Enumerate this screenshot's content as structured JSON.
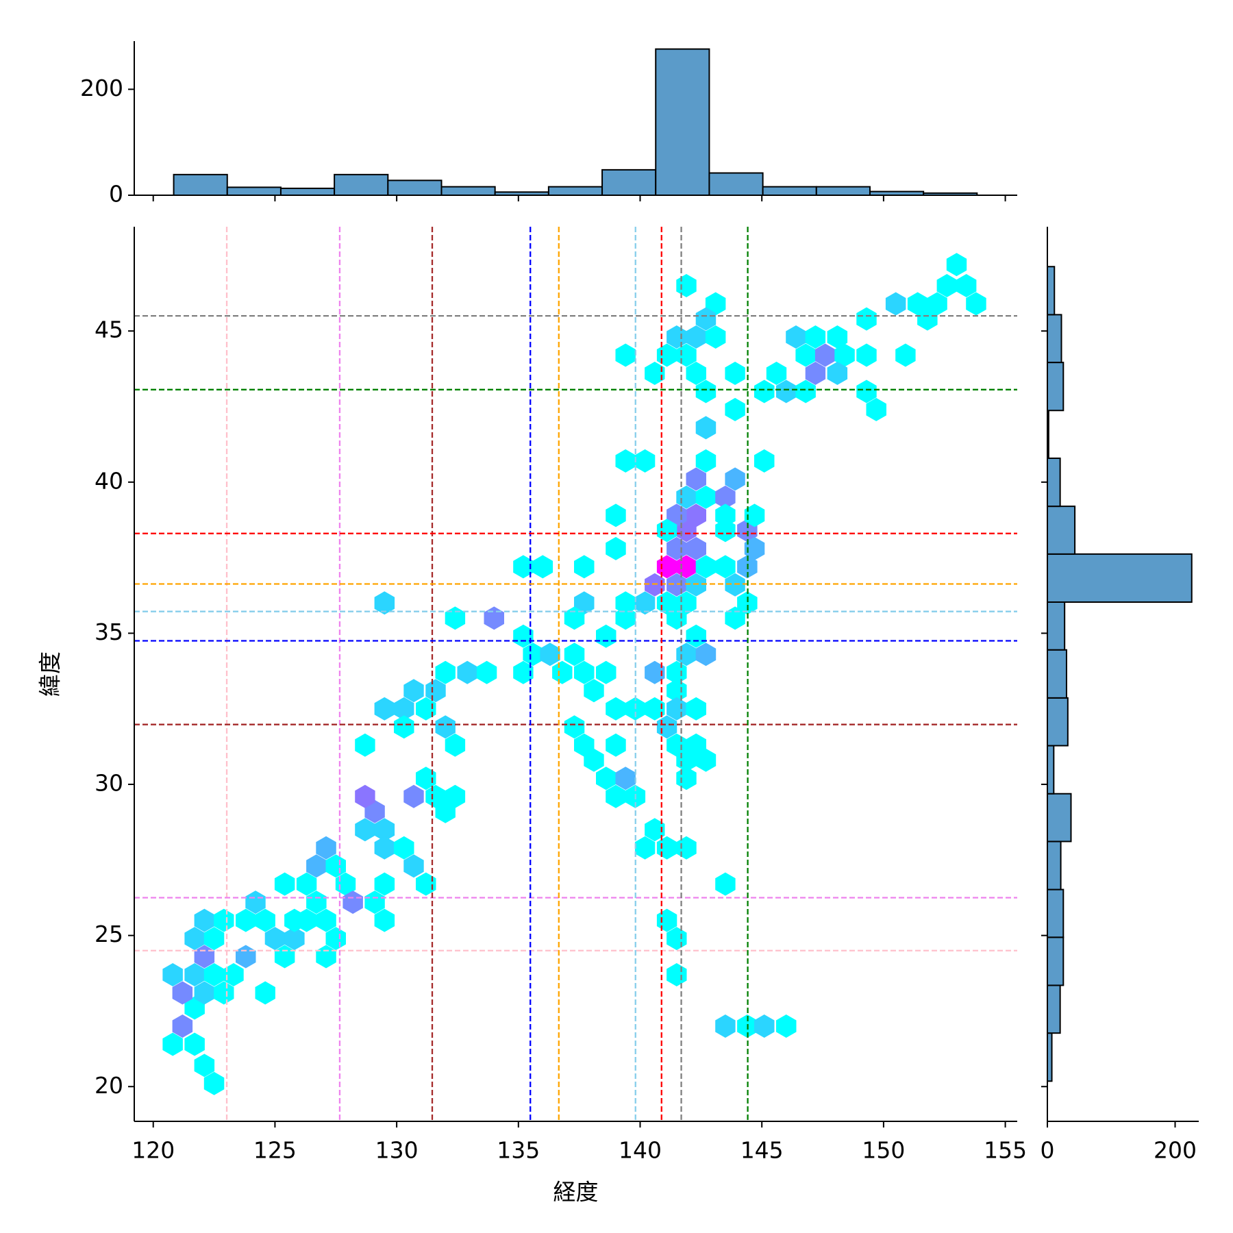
{
  "chart_data": [
    {
      "type": "histogram",
      "orientation": "vertical",
      "color": "#5b9bc9",
      "bins": [
        120.84,
        123.04,
        125.24,
        127.44,
        129.64,
        131.84,
        134.04,
        136.24,
        138.44,
        140.64,
        142.84,
        145.04,
        147.24,
        149.44,
        151.64,
        153.84
      ],
      "counts": [
        39,
        15,
        13,
        39,
        28,
        16,
        6,
        16,
        48,
        276,
        42,
        16,
        16,
        7,
        4
      ],
      "ylim": [
        0,
        291
      ],
      "yticks": [
        0,
        200
      ]
    },
    {
      "type": "hexbin",
      "x_label": "経度",
      "y_label": "緯度",
      "colormap": "cool",
      "xlim": [
        119.22,
        155.49
      ],
      "ylim": [
        18.85,
        48.45
      ],
      "xticks": [
        120,
        125,
        130,
        135,
        140,
        145,
        150,
        155
      ],
      "yticks": [
        20,
        25,
        30,
        35,
        40,
        45
      ],
      "points": [
        [
          122.5,
          20.1,
          1
        ],
        [
          122.1,
          20.7,
          1
        ],
        [
          120.8,
          21.4,
          1
        ],
        [
          121.7,
          21.4,
          1
        ],
        [
          121.2,
          22.0,
          12
        ],
        [
          121.7,
          22.6,
          1
        ],
        [
          121.2,
          23.1,
          12
        ],
        [
          122.1,
          23.1,
          5
        ],
        [
          120.8,
          23.7,
          5
        ],
        [
          121.7,
          23.7,
          5
        ],
        [
          122.5,
          23.7,
          1
        ],
        [
          123.3,
          23.7,
          1
        ],
        [
          122.9,
          23.1,
          1
        ],
        [
          122.1,
          24.3,
          12
        ],
        [
          121.7,
          24.9,
          5
        ],
        [
          122.1,
          25.5,
          5
        ],
        [
          122.9,
          25.5,
          1
        ],
        [
          122.5,
          24.9,
          1
        ],
        [
          123.8,
          25.5,
          1
        ],
        [
          124.2,
          26.1,
          5
        ],
        [
          124.6,
          25.5,
          1
        ],
        [
          125.0,
          24.9,
          5
        ],
        [
          125.8,
          24.9,
          5
        ],
        [
          125.4,
          24.3,
          1
        ],
        [
          123.8,
          24.3,
          8
        ],
        [
          124.6,
          23.1,
          1
        ],
        [
          125.8,
          25.5,
          1
        ],
        [
          125.4,
          26.7,
          1
        ],
        [
          126.3,
          26.7,
          1
        ],
        [
          126.3,
          25.5,
          1
        ],
        [
          126.7,
          26.1,
          1
        ],
        [
          127.1,
          25.5,
          1
        ],
        [
          127.1,
          24.3,
          1
        ],
        [
          127.5,
          24.9,
          1
        ],
        [
          126.7,
          27.3,
          8
        ],
        [
          127.1,
          27.9,
          8
        ],
        [
          127.5,
          27.3,
          1
        ],
        [
          127.9,
          26.7,
          1
        ],
        [
          128.2,
          26.1,
          12
        ],
        [
          129.1,
          26.1,
          1
        ],
        [
          129.5,
          25.5,
          1
        ],
        [
          129.5,
          26.7,
          1
        ],
        [
          128.7,
          28.5,
          5
        ],
        [
          129.1,
          29.1,
          12
        ],
        [
          128.7,
          29.6,
          14
        ],
        [
          129.5,
          28.5,
          5
        ],
        [
          129.5,
          27.9,
          5
        ],
        [
          130.3,
          27.9,
          1
        ],
        [
          130.7,
          27.3,
          5
        ],
        [
          131.2,
          26.7,
          1
        ],
        [
          131.2,
          30.2,
          1
        ],
        [
          130.7,
          29.6,
          12
        ],
        [
          131.6,
          29.6,
          1
        ],
        [
          132.0,
          29.1,
          1
        ],
        [
          132.4,
          29.6,
          1
        ],
        [
          128.7,
          31.3,
          1
        ],
        [
          129.5,
          32.5,
          5
        ],
        [
          130.3,
          32.5,
          5
        ],
        [
          130.7,
          33.1,
          5
        ],
        [
          130.3,
          31.9,
          1
        ],
        [
          131.2,
          32.5,
          1
        ],
        [
          131.6,
          33.1,
          5
        ],
        [
          132.0,
          31.9,
          5
        ],
        [
          132.4,
          31.3,
          1
        ],
        [
          132.0,
          33.7,
          1
        ],
        [
          132.9,
          33.7,
          5
        ],
        [
          133.7,
          33.7,
          1
        ],
        [
          132.4,
          35.5,
          1
        ],
        [
          134.0,
          35.5,
          12
        ],
        [
          129.5,
          36.0,
          5
        ],
        [
          135.2,
          34.9,
          1
        ],
        [
          135.2,
          33.7,
          1
        ],
        [
          135.6,
          34.3,
          1
        ],
        [
          136.3,
          34.3,
          5
        ],
        [
          136.0,
          37.2,
          1
        ],
        [
          135.2,
          37.2,
          1
        ],
        [
          137.7,
          37.2,
          1
        ],
        [
          137.7,
          36.0,
          5
        ],
        [
          137.3,
          35.5,
          1
        ],
        [
          137.3,
          34.3,
          1
        ],
        [
          136.8,
          33.7,
          1
        ],
        [
          137.7,
          33.7,
          1
        ],
        [
          138.6,
          33.7,
          1
        ],
        [
          138.1,
          33.1,
          1
        ],
        [
          139.0,
          32.5,
          1
        ],
        [
          137.3,
          31.9,
          1
        ],
        [
          137.7,
          31.3,
          1
        ],
        [
          138.1,
          30.8,
          1
        ],
        [
          138.6,
          30.2,
          1
        ],
        [
          139.0,
          29.6,
          1
        ],
        [
          139.4,
          30.2,
          8
        ],
        [
          139.8,
          29.6,
          1
        ],
        [
          139.0,
          31.3,
          1
        ],
        [
          138.6,
          34.9,
          1
        ],
        [
          139.4,
          35.5,
          1
        ],
        [
          139.4,
          36.0,
          1
        ],
        [
          139.0,
          37.8,
          1
        ],
        [
          139.0,
          38.9,
          1
        ],
        [
          139.4,
          40.7,
          1
        ],
        [
          140.2,
          40.7,
          1
        ],
        [
          139.4,
          44.2,
          1
        ],
        [
          140.2,
          36.0,
          5
        ],
        [
          141.1,
          37.2,
          25
        ],
        [
          141.9,
          37.2,
          25
        ],
        [
          140.6,
          36.6,
          14
        ],
        [
          141.5,
          37.8,
          12
        ],
        [
          141.9,
          38.4,
          14
        ],
        [
          142.3,
          38.9,
          14
        ],
        [
          141.5,
          38.9,
          12
        ],
        [
          141.9,
          39.5,
          5
        ],
        [
          142.3,
          40.1,
          12
        ],
        [
          142.7,
          39.5,
          1
        ],
        [
          143.5,
          39.5,
          12
        ],
        [
          143.9,
          40.1,
          8
        ],
        [
          141.1,
          38.4,
          1
        ],
        [
          141.5,
          36.6,
          12
        ],
        [
          142.3,
          37.8,
          12
        ],
        [
          142.3,
          36.6,
          5
        ],
        [
          142.7,
          37.2,
          1
        ],
        [
          143.5,
          37.2,
          1
        ],
        [
          143.9,
          36.6,
          5
        ],
        [
          144.4,
          37.2,
          8
        ],
        [
          144.4,
          38.4,
          12
        ],
        [
          144.7,
          37.8,
          8
        ],
        [
          143.5,
          38.4,
          1
        ],
        [
          143.5,
          38.9,
          1
        ],
        [
          144.7,
          38.9,
          1
        ],
        [
          144.4,
          36.0,
          1
        ],
        [
          143.9,
          35.5,
          1
        ],
        [
          141.1,
          36.0,
          1
        ],
        [
          141.9,
          36.0,
          1
        ],
        [
          141.5,
          35.5,
          1
        ],
        [
          142.3,
          34.9,
          1
        ],
        [
          141.9,
          34.3,
          5
        ],
        [
          142.7,
          34.3,
          8
        ],
        [
          141.5,
          33.7,
          1
        ],
        [
          140.6,
          33.7,
          8
        ],
        [
          141.5,
          33.1,
          1
        ],
        [
          140.6,
          32.5,
          1
        ],
        [
          141.5,
          32.5,
          5
        ],
        [
          142.3,
          32.5,
          1
        ],
        [
          139.8,
          32.5,
          1
        ],
        [
          141.1,
          31.9,
          5
        ],
        [
          141.5,
          31.3,
          1
        ],
        [
          141.9,
          30.8,
          1
        ],
        [
          142.3,
          31.3,
          1
        ],
        [
          142.7,
          30.8,
          1
        ],
        [
          141.9,
          30.2,
          1
        ],
        [
          140.6,
          28.5,
          1
        ],
        [
          140.2,
          27.9,
          1
        ],
        [
          141.1,
          27.9,
          1
        ],
        [
          141.9,
          27.9,
          1
        ],
        [
          141.1,
          25.5,
          1
        ],
        [
          141.5,
          24.9,
          1
        ],
        [
          141.5,
          23.7,
          1
        ],
        [
          143.5,
          26.7,
          1
        ],
        [
          143.5,
          22.0,
          5
        ],
        [
          144.4,
          22.0,
          1
        ],
        [
          145.1,
          22.0,
          5
        ],
        [
          146.0,
          22.0,
          1
        ],
        [
          142.7,
          41.8,
          5
        ],
        [
          145.1,
          40.7,
          1
        ],
        [
          142.7,
          40.7,
          1
        ],
        [
          141.9,
          46.5,
          1
        ],
        [
          143.1,
          45.9,
          1
        ],
        [
          142.7,
          45.4,
          5
        ],
        [
          142.3,
          44.8,
          5
        ],
        [
          141.5,
          44.8,
          5
        ],
        [
          143.1,
          44.8,
          1
        ],
        [
          141.1,
          44.2,
          1
        ],
        [
          141.9,
          44.2,
          1
        ],
        [
          140.6,
          43.6,
          1
        ],
        [
          142.3,
          43.6,
          1
        ],
        [
          142.7,
          43.0,
          1
        ],
        [
          143.9,
          43.6,
          1
        ],
        [
          143.9,
          42.4,
          1
        ],
        [
          145.1,
          43.0,
          1
        ],
        [
          145.6,
          43.6,
          1
        ],
        [
          146.0,
          43.0,
          5
        ],
        [
          146.8,
          43.0,
          1
        ],
        [
          147.2,
          43.6,
          12
        ],
        [
          146.4,
          44.8,
          5
        ],
        [
          147.2,
          44.8,
          1
        ],
        [
          148.1,
          44.8,
          1
        ],
        [
          146.8,
          44.2,
          1
        ],
        [
          147.6,
          44.2,
          12
        ],
        [
          148.4,
          44.2,
          1
        ],
        [
          149.3,
          44.2,
          1
        ],
        [
          148.1,
          43.6,
          5
        ],
        [
          149.3,
          43.0,
          1
        ],
        [
          149.7,
          42.4,
          1
        ],
        [
          149.3,
          45.4,
          1
        ],
        [
          150.9,
          44.2,
          1
        ],
        [
          150.5,
          45.9,
          5
        ],
        [
          151.4,
          45.9,
          1
        ],
        [
          152.2,
          45.9,
          1
        ],
        [
          151.8,
          45.4,
          1
        ],
        [
          152.6,
          46.5,
          1
        ],
        [
          153.0,
          47.2,
          1
        ],
        [
          153.4,
          46.5,
          1
        ],
        [
          153.8,
          45.9,
          1
        ]
      ],
      "reference_lines": [
        {
          "color": "pink",
          "x": 123.02,
          "y": 24.5
        },
        {
          "color": "violet",
          "x": 127.66,
          "y": 26.25
        },
        {
          "color": "brown",
          "x": 131.46,
          "y": 31.98
        },
        {
          "color": "blue",
          "x": 135.49,
          "y": 34.75
        },
        {
          "color": "orange",
          "x": 136.66,
          "y": 36.63
        },
        {
          "color": "skyblue",
          "x": 139.81,
          "y": 35.72
        },
        {
          "color": "red",
          "x": 140.88,
          "y": 38.3
        },
        {
          "color": "gray",
          "x": 141.69,
          "y": 45.5
        },
        {
          "color": "green",
          "x": 144.42,
          "y": 43.06
        }
      ]
    },
    {
      "type": "histogram",
      "orientation": "horizontal",
      "color": "#5b9bc9",
      "bins": [
        20.18,
        21.77,
        23.35,
        24.94,
        26.52,
        28.11,
        29.69,
        31.28,
        32.86,
        34.45,
        36.03,
        37.62,
        39.2,
        40.79,
        42.37,
        43.96,
        45.54,
        47.13
      ],
      "counts": [
        7,
        20,
        25,
        25,
        21,
        37,
        10,
        32,
        30,
        27,
        226,
        43,
        20,
        2,
        25,
        22,
        11
      ],
      "xlim": [
        0,
        237
      ],
      "xticks": [
        0,
        200
      ]
    }
  ]
}
